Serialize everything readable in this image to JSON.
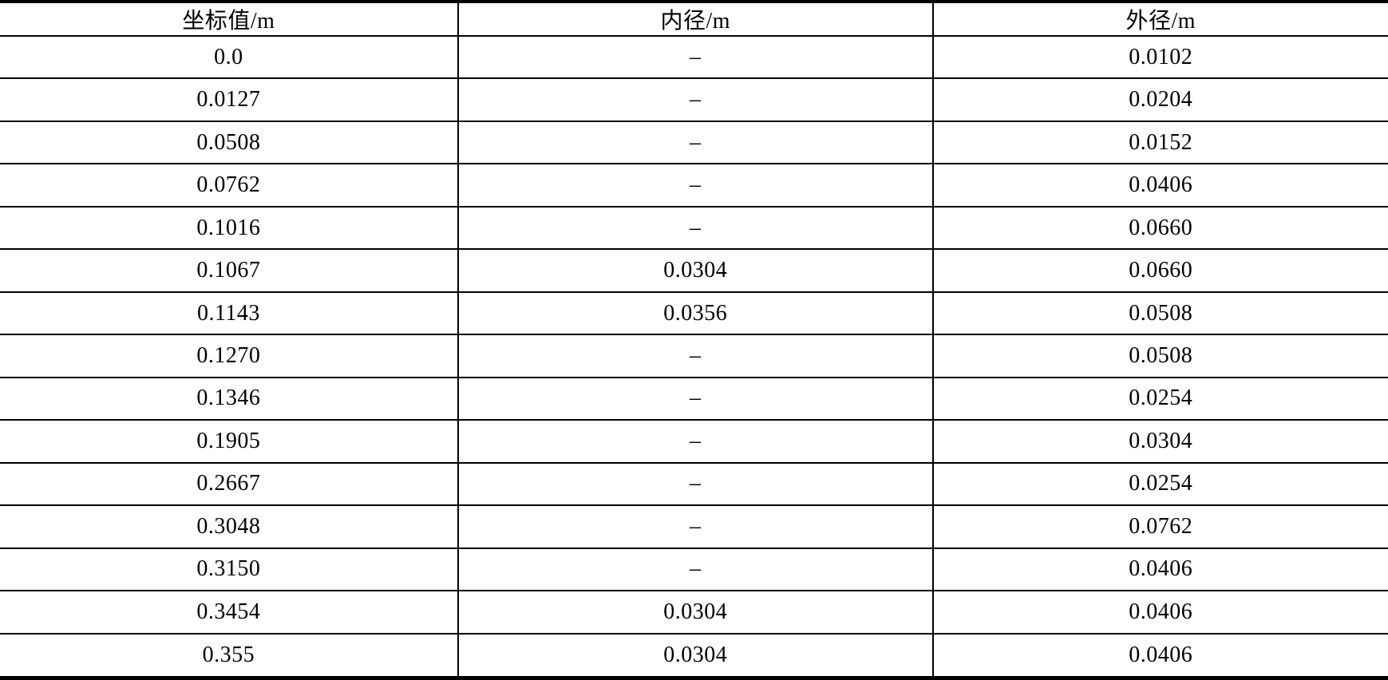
{
  "table": {
    "headers": [
      {
        "id": "coordinate",
        "label": "坐标值/m"
      },
      {
        "id": "inner-diameter",
        "label": "内径/m"
      },
      {
        "id": "outer-diameter",
        "label": "外径/m"
      }
    ],
    "empty_marker": "–",
    "rows": [
      [
        "0.0",
        "–",
        "0.0102"
      ],
      [
        "0.0127",
        "–",
        "0.0204"
      ],
      [
        "0.0508",
        "–",
        "0.0152"
      ],
      [
        "0.0762",
        "–",
        "0.0406"
      ],
      [
        "0.1016",
        "–",
        "0.0660"
      ],
      [
        "0.1067",
        "0.0304",
        "0.0660"
      ],
      [
        "0.1143",
        "0.0356",
        "0.0508"
      ],
      [
        "0.1270",
        "–",
        "0.0508"
      ],
      [
        "0.1346",
        "–",
        "0.0254"
      ],
      [
        "0.1905",
        "–",
        "0.0304"
      ],
      [
        "0.2667",
        "–",
        "0.0254"
      ],
      [
        "0.3048",
        "–",
        "0.0762"
      ],
      [
        "0.3150",
        "–",
        "0.0406"
      ],
      [
        "0.3454",
        "0.0304",
        "0.0406"
      ],
      [
        "0.355",
        "0.0304",
        "0.0406"
      ]
    ]
  },
  "colors": {
    "border": "#000000",
    "text": "#000000",
    "background": "#ffffff"
  }
}
